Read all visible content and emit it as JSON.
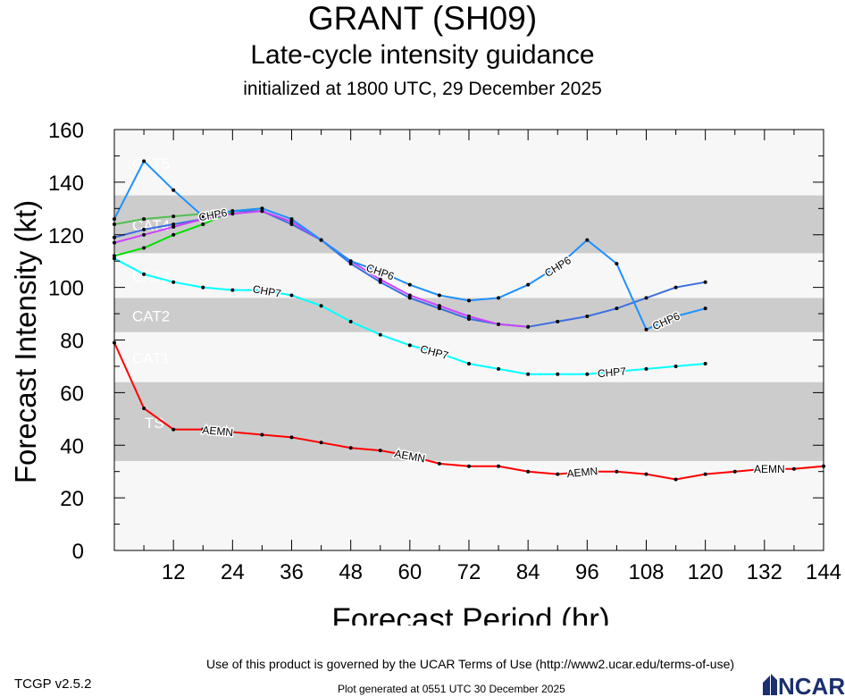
{
  "header": {
    "title": "GRANT (SH09)",
    "subtitle": "Late-cycle intensity guidance",
    "init": "initialized at 1800 UTC, 29 December 2025"
  },
  "footer": {
    "terms": "Use of this product is governed by the UCAR Terms of Use (http://www2.ucar.edu/terms-of-use)",
    "version": "TCGP v2.5.2",
    "generated": "Plot generated at 0551 UTC   30 December 2025",
    "logo": "NCAR"
  },
  "colors": {
    "band_light": "#f7f7f7",
    "band_dark": "#cccccc",
    "AEMN": "#ff0000",
    "CHP7": "#00ffff",
    "CHP6": "#1e90ff",
    "blue2": "#3c6fe0",
    "green": "#00e000",
    "green2": "#50c050",
    "magenta": "#cc44ff"
  },
  "chart_data": {
    "type": "line",
    "title": "",
    "xlabel": "Forecast Period (hr)",
    "ylabel": "Forecast Intensity (kt)",
    "xlim": [
      0,
      144
    ],
    "ylim": [
      0,
      160
    ],
    "xticks": [
      12,
      24,
      36,
      48,
      60,
      72,
      84,
      96,
      108,
      120,
      132,
      144
    ],
    "yticks": [
      0,
      20,
      40,
      60,
      80,
      100,
      120,
      140,
      160
    ],
    "bands": [
      {
        "label": "TS",
        "from": 34,
        "to": 64,
        "shade": "dark"
      },
      {
        "label": "CAT1",
        "from": 64,
        "to": 83,
        "shade": "light"
      },
      {
        "label": "CAT2",
        "from": 83,
        "to": 96,
        "shade": "dark"
      },
      {
        "label": "CAT3",
        "from": 96,
        "to": 113,
        "shade": "light"
      },
      {
        "label": "CAT4",
        "from": 113,
        "to": 135,
        "shade": "dark"
      },
      {
        "label": "CAT5",
        "from": 135,
        "to": 160,
        "shade": "light"
      }
    ],
    "series": [
      {
        "name": "AEMN",
        "color_key": "AEMN",
        "x": [
          0,
          6,
          12,
          18,
          24,
          30,
          36,
          42,
          48,
          54,
          60,
          66,
          72,
          78,
          84,
          90,
          96,
          102,
          108,
          114,
          120,
          126,
          132,
          138,
          144
        ],
        "y": [
          79,
          54,
          46,
          46,
          45,
          44,
          43,
          41,
          39,
          38,
          36,
          33,
          32,
          32,
          30,
          29,
          30,
          30,
          29,
          27,
          29,
          30,
          31,
          31,
          32
        ],
        "labels_at": [
          21,
          60,
          95,
          133
        ]
      },
      {
        "name": "CHP7",
        "color_key": "CHP7",
        "x": [
          0,
          6,
          12,
          18,
          24,
          30,
          36,
          42,
          48,
          54,
          60,
          66,
          72,
          78,
          84,
          90,
          96,
          102,
          108,
          114,
          120
        ],
        "y": [
          111,
          105,
          102,
          100,
          99,
          99,
          97,
          93,
          87,
          82,
          78,
          75,
          71,
          69,
          67,
          67,
          67,
          68,
          69,
          70,
          71
        ],
        "labels_at": [
          31,
          65,
          101
        ]
      },
      {
        "name": "CHP6",
        "color_key": "CHP6",
        "x": [
          0,
          6,
          12,
          18,
          24,
          30,
          36,
          42,
          48,
          54,
          60,
          66,
          72,
          78,
          84,
          90,
          96,
          102,
          108,
          114,
          120
        ],
        "y": [
          126,
          148,
          137,
          127,
          129,
          130,
          126,
          118,
          110,
          106,
          101,
          97,
          95,
          96,
          101,
          108,
          118,
          109,
          84,
          89,
          92
        ],
        "labels_at": [
          20,
          54,
          90,
          112
        ]
      },
      {
        "name": "",
        "color_key": "blue2",
        "x": [
          0,
          6,
          12,
          18,
          24,
          30,
          36,
          42,
          48,
          54,
          60,
          66,
          72,
          78,
          84,
          90,
          96,
          102,
          108,
          114,
          120
        ],
        "y": [
          119,
          122,
          124,
          126,
          129,
          129,
          124,
          118,
          109,
          102,
          96,
          92,
          88,
          86,
          85,
          87,
          89,
          92,
          96,
          100,
          102
        ],
        "labels_at": []
      },
      {
        "name": "",
        "color_key": "green",
        "x": [
          0,
          6,
          12,
          18,
          24,
          30
        ],
        "y": [
          112,
          115,
          120,
          124,
          129,
          130
        ],
        "labels_at": []
      },
      {
        "name": "",
        "color_key": "green2",
        "x": [
          0,
          6,
          12,
          18,
          24,
          30
        ],
        "y": [
          124,
          126,
          127,
          128,
          129,
          130
        ],
        "labels_at": []
      },
      {
        "name": "",
        "color_key": "magenta",
        "x": [
          0,
          6,
          12,
          18,
          24,
          30,
          36,
          42,
          48,
          54,
          60,
          66,
          72,
          78,
          84
        ],
        "y": [
          117,
          120,
          123,
          126,
          128,
          129,
          125,
          118,
          110,
          103,
          97,
          93,
          89,
          86,
          85
        ],
        "labels_at": []
      }
    ]
  }
}
